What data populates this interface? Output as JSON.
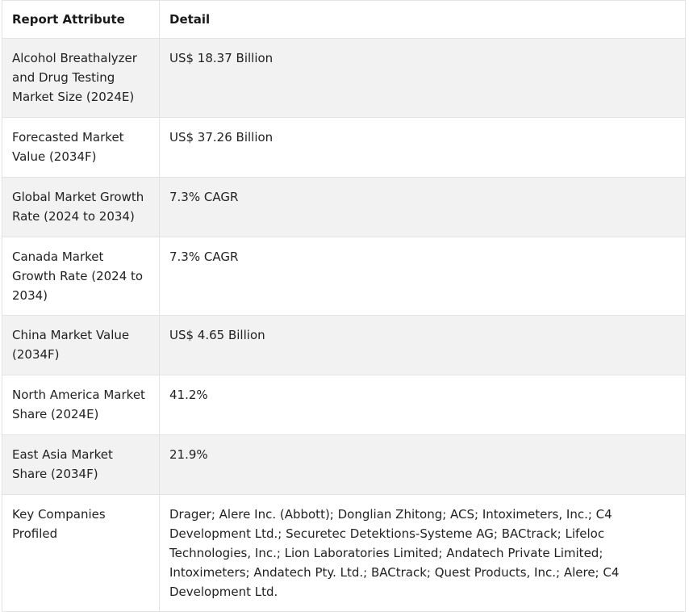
{
  "table": {
    "headers": [
      "Report Attribute",
      "Detail"
    ],
    "rows": [
      {
        "attribute": "Alcohol Breathalyzer and Drug Testing Market Size (2024E)",
        "detail": "US$ 18.37 Billion"
      },
      {
        "attribute": "Forecasted Market Value (2034F)",
        "detail": "US$ 37.26 Billion"
      },
      {
        "attribute": "Global Market Growth Rate (2024 to 2034)",
        "detail": "7.3% CAGR"
      },
      {
        "attribute": "Canada Market Growth Rate (2024 to 2034)",
        "detail": "7.3% CAGR"
      },
      {
        "attribute": "China Market Value (2034F)",
        "detail": "US$ 4.65 Billion"
      },
      {
        "attribute": "North America Market Share (2024E)",
        "detail": "41.2%"
      },
      {
        "attribute": "East Asia Market Share (2034F)",
        "detail": "21.9%"
      },
      {
        "attribute": "Key Companies Profiled",
        "detail": "Drager; Alere Inc. (Abbott); Donglian Zhitong; ACS; Intoximeters, Inc.; C4 Development Ltd.; Securetec Detektions-Systeme AG; BACtrack; Lifeloc Technologies, Inc.; Lion Laboratories Limited; Andatech Private Limited; Intoximeters; Andatech Pty. Ltd.; BACtrack; Quest Products, Inc.; Alere; C4 Development Ltd."
      }
    ]
  }
}
